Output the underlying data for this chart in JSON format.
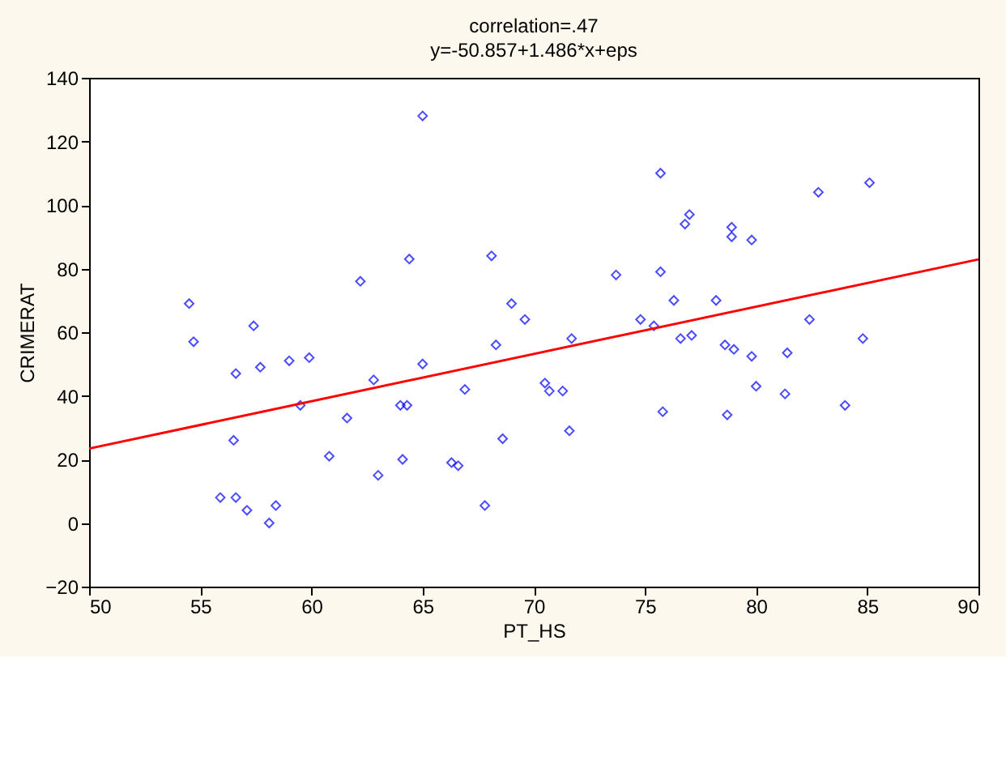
{
  "chart_data": {
    "type": "scatter",
    "title": "correlation=.47",
    "subtitle": "y=-50.857+1.486*x+eps",
    "xlabel": "PT_HS",
    "ylabel": "CRIMERAT",
    "xlim": [
      50,
      90
    ],
    "xticks": [
      50,
      55,
      60,
      65,
      70,
      75,
      80,
      85,
      90
    ],
    "ylim": [
      -20,
      140
    ],
    "yticks": [
      -20,
      0,
      20,
      40,
      60,
      80,
      100,
      120,
      140
    ],
    "grid": false,
    "marker": "diamond",
    "series": [
      {
        "color": "#0000ff",
        "x": [
          54.5,
          54.7,
          55.9,
          56.5,
          56.6,
          56.6,
          57.1,
          57.4,
          57.7,
          58.1,
          58.4,
          59.0,
          59.5,
          59.9,
          60.8,
          61.6,
          62.2,
          62.8,
          63.0,
          64.0,
          64.1,
          64.3,
          64.4,
          65.0,
          65.0,
          66.3,
          66.6,
          66.9,
          67.8,
          68.1,
          68.3,
          68.6,
          69.0,
          69.6,
          70.5,
          70.7,
          71.3,
          71.6,
          71.7,
          73.7,
          74.8,
          75.4,
          75.7,
          75.7,
          75.8,
          76.3,
          76.6,
          77.1,
          77.0,
          76.8,
          78.2,
          78.6,
          79.0,
          78.9,
          78.9,
          78.7,
          79.8,
          79.8,
          80.0,
          81.3,
          81.4,
          82.4,
          82.8,
          84.0,
          84.8,
          85.1
        ],
        "values": [
          69,
          57,
          8,
          26,
          47,
          8,
          4,
          62,
          49,
          0,
          5.5,
          51,
          37,
          52,
          21,
          33,
          76,
          45,
          15,
          37,
          20,
          37,
          83,
          128,
          50,
          19,
          18,
          42,
          5.5,
          84,
          56,
          26.5,
          69,
          64,
          44,
          41.5,
          41.5,
          29,
          58,
          78,
          64,
          62,
          110,
          79,
          35,
          70,
          58,
          59,
          97,
          94,
          70,
          56,
          54.6,
          93,
          90,
          34,
          89,
          52.4,
          43,
          40.6,
          53.5,
          64,
          104,
          37,
          58,
          107
        ]
      },
      {
        "type": "line",
        "color": "#ff0000",
        "x": [
          50,
          90
        ],
        "values": [
          23.4,
          82.9
        ],
        "marker": "none",
        "line_style": "solid"
      }
    ]
  }
}
